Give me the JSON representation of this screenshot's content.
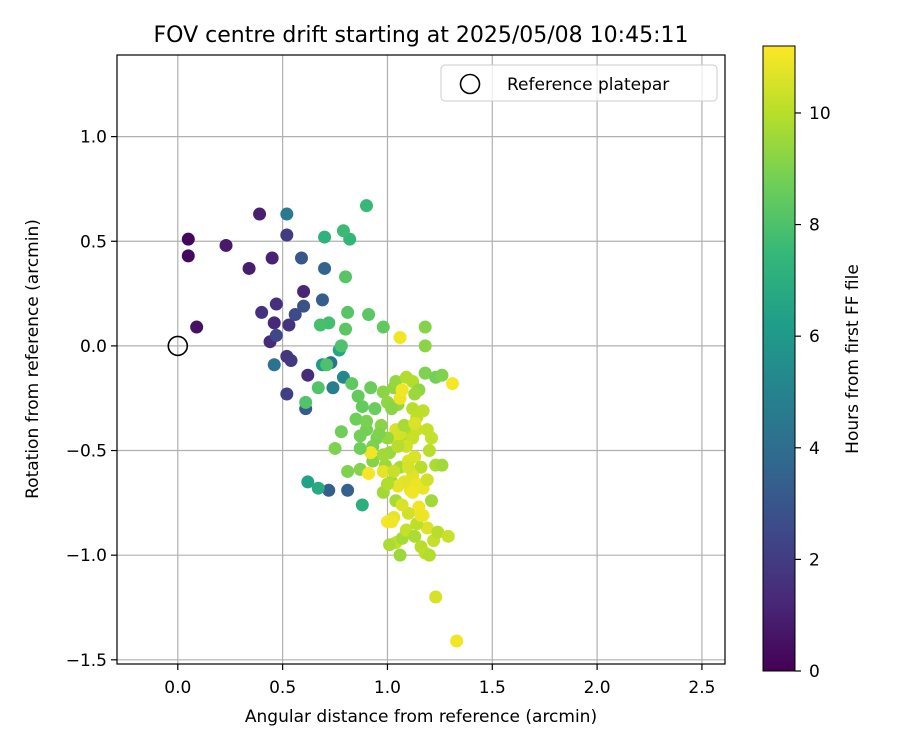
{
  "chart_data": {
    "type": "scatter",
    "title": "FOV centre drift starting at 2025/05/08 10:45:11",
    "xlabel": "Angular distance from reference (arcmin)",
    "ylabel": "Rotation from reference (arcmin)",
    "xlim": [
      -0.29,
      2.61
    ],
    "ylim": [
      -1.52,
      1.39
    ],
    "xticks": [
      0.0,
      0.5,
      1.0,
      1.5,
      2.0,
      2.5
    ],
    "xtick_labels": [
      "0.0",
      "0.5",
      "1.0",
      "1.5",
      "2.0",
      "2.5"
    ],
    "yticks": [
      -1.5,
      -1.0,
      -0.5,
      0.0,
      0.5,
      1.0
    ],
    "ytick_labels": [
      "−1.5",
      "−1.0",
      "−0.5",
      "0.0",
      "0.5",
      "1.0"
    ],
    "grid": true,
    "legend": {
      "placement": "top-right",
      "entries": [
        "Reference platepar"
      ]
    },
    "reference_point": {
      "x": 0.0,
      "y": 0.0
    },
    "colorbar": {
      "label": "Hours from first FF file",
      "colormap": "viridis",
      "min": 0,
      "max": 11.2,
      "ticks": [
        0,
        2,
        4,
        6,
        8,
        10
      ],
      "tick_labels": [
        "0",
        "2",
        "4",
        "6",
        "8",
        "10"
      ]
    },
    "points": [
      {
        "x": 0.05,
        "y": 0.51,
        "h": 0.2
      },
      {
        "x": 0.05,
        "y": 0.43,
        "h": 0.3
      },
      {
        "x": 0.09,
        "y": 0.09,
        "h": 0.5
      },
      {
        "x": 0.23,
        "y": 0.48,
        "h": 0.8
      },
      {
        "x": 0.34,
        "y": 0.37,
        "h": 0.9
      },
      {
        "x": 0.39,
        "y": 0.63,
        "h": 1.0
      },
      {
        "x": 0.45,
        "y": 0.42,
        "h": 1.1
      },
      {
        "x": 0.46,
        "y": 0.11,
        "h": 1.3
      },
      {
        "x": 0.44,
        "y": 0.02,
        "h": 1.4
      },
      {
        "x": 0.4,
        "y": 0.16,
        "h": 1.6
      },
      {
        "x": 0.47,
        "y": 0.2,
        "h": 1.5
      },
      {
        "x": 0.52,
        "y": 0.53,
        "h": 2.0
      },
      {
        "x": 0.53,
        "y": 0.1,
        "h": 1.7
      },
      {
        "x": 0.52,
        "y": -0.05,
        "h": 1.8
      },
      {
        "x": 0.54,
        "y": -0.07,
        "h": 1.9
      },
      {
        "x": 0.6,
        "y": 0.26,
        "h": 1.2
      },
      {
        "x": 0.62,
        "y": -0.14,
        "h": 1.4
      },
      {
        "x": 0.52,
        "y": -0.23,
        "h": 2.1
      },
      {
        "x": 0.47,
        "y": 0.05,
        "h": 2.4
      },
      {
        "x": 0.56,
        "y": 0.15,
        "h": 2.6
      },
      {
        "x": 0.6,
        "y": 0.19,
        "h": 2.8
      },
      {
        "x": 0.59,
        "y": 0.42,
        "h": 3.0
      },
      {
        "x": 0.61,
        "y": -0.3,
        "h": 3.2
      },
      {
        "x": 0.69,
        "y": 0.22,
        "h": 3.3
      },
      {
        "x": 0.7,
        "y": 0.37,
        "h": 3.6
      },
      {
        "x": 0.72,
        "y": -0.69,
        "h": 3.4
      },
      {
        "x": 0.81,
        "y": -0.69,
        "h": 3.5
      },
      {
        "x": 0.46,
        "y": -0.09,
        "h": 4.2
      },
      {
        "x": 0.52,
        "y": 0.63,
        "h": 4.6
      },
      {
        "x": 0.73,
        "y": -0.08,
        "h": 4.3
      },
      {
        "x": 0.74,
        "y": -0.2,
        "h": 4.8
      },
      {
        "x": 0.79,
        "y": -0.15,
        "h": 5.2
      },
      {
        "x": 0.69,
        "y": -0.09,
        "h": 6.0
      },
      {
        "x": 0.62,
        "y": -0.65,
        "h": 6.4
      },
      {
        "x": 0.67,
        "y": -0.68,
        "h": 6.8
      },
      {
        "x": 0.77,
        "y": -0.02,
        "h": 6.6
      },
      {
        "x": 0.88,
        "y": -0.76,
        "h": 7.0
      },
      {
        "x": 0.7,
        "y": 0.52,
        "h": 7.2
      },
      {
        "x": 0.82,
        "y": 0.51,
        "h": 7.4
      },
      {
        "x": 0.79,
        "y": 0.55,
        "h": 7.6
      },
      {
        "x": 0.9,
        "y": 0.67,
        "h": 7.5
      },
      {
        "x": 0.72,
        "y": 0.11,
        "h": 7.8
      },
      {
        "x": 0.68,
        "y": 0.1,
        "h": 7.9
      },
      {
        "x": 0.78,
        "y": 0.0,
        "h": 8.0
      },
      {
        "x": 0.71,
        "y": -0.09,
        "h": 8.0
      },
      {
        "x": 0.67,
        "y": -0.2,
        "h": 8.1
      },
      {
        "x": 0.61,
        "y": -0.27,
        "h": 8.1
      },
      {
        "x": 0.8,
        "y": 0.33,
        "h": 8.2
      },
      {
        "x": 0.81,
        "y": 0.16,
        "h": 8.2
      },
      {
        "x": 0.8,
        "y": 0.08,
        "h": 8.3
      },
      {
        "x": 0.91,
        "y": 0.15,
        "h": 8.3
      },
      {
        "x": 0.98,
        "y": 0.09,
        "h": 8.4
      },
      {
        "x": 0.83,
        "y": -0.18,
        "h": 8.4
      },
      {
        "x": 0.86,
        "y": -0.24,
        "h": 8.5
      },
      {
        "x": 0.88,
        "y": -0.29,
        "h": 8.5
      },
      {
        "x": 0.92,
        "y": -0.2,
        "h": 8.6
      },
      {
        "x": 0.94,
        "y": -0.3,
        "h": 8.6
      },
      {
        "x": 0.78,
        "y": -0.41,
        "h": 8.7
      },
      {
        "x": 0.85,
        "y": -0.35,
        "h": 8.7
      },
      {
        "x": 0.87,
        "y": -0.43,
        "h": 8.8
      },
      {
        "x": 0.9,
        "y": -0.4,
        "h": 8.8
      },
      {
        "x": 0.95,
        "y": -0.44,
        "h": 8.9
      },
      {
        "x": 0.93,
        "y": -0.48,
        "h": 8.9
      },
      {
        "x": 0.75,
        "y": -0.49,
        "h": 9.0
      },
      {
        "x": 0.81,
        "y": -0.6,
        "h": 9.0
      },
      {
        "x": 0.87,
        "y": -0.59,
        "h": 9.1
      },
      {
        "x": 0.93,
        "y": -0.55,
        "h": 9.1
      },
      {
        "x": 0.97,
        "y": -0.38,
        "h": 9.2
      },
      {
        "x": 0.98,
        "y": -0.22,
        "h": 9.2
      },
      {
        "x": 1.0,
        "y": -0.27,
        "h": 9.3
      },
      {
        "x": 1.03,
        "y": -0.2,
        "h": 9.3
      },
      {
        "x": 1.05,
        "y": -0.28,
        "h": 9.4
      },
      {
        "x": 1.04,
        "y": -0.17,
        "h": 9.4
      },
      {
        "x": 1.01,
        "y": -0.51,
        "h": 9.5
      },
      {
        "x": 0.99,
        "y": -0.57,
        "h": 9.5
      },
      {
        "x": 0.98,
        "y": -0.7,
        "h": 9.6
      },
      {
        "x": 1.02,
        "y": -0.65,
        "h": 9.6
      },
      {
        "x": 1.04,
        "y": -0.74,
        "h": 9.7
      },
      {
        "x": 1.06,
        "y": -0.58,
        "h": 9.7
      },
      {
        "x": 1.08,
        "y": -0.46,
        "h": 9.8
      },
      {
        "x": 1.1,
        "y": -0.4,
        "h": 9.8
      },
      {
        "x": 1.09,
        "y": -0.15,
        "h": 9.9
      },
      {
        "x": 1.12,
        "y": -0.17,
        "h": 9.9
      },
      {
        "x": 1.15,
        "y": -0.21,
        "h": 9.3
      },
      {
        "x": 1.18,
        "y": -0.13,
        "h": 9.0
      },
      {
        "x": 1.23,
        "y": -0.15,
        "h": 8.8
      },
      {
        "x": 1.26,
        "y": -0.14,
        "h": 9.0
      },
      {
        "x": 1.18,
        "y": 0.09,
        "h": 9.1
      },
      {
        "x": 1.18,
        "y": 0.0,
        "h": 9.2
      },
      {
        "x": 1.12,
        "y": -0.3,
        "h": 10.0
      },
      {
        "x": 1.14,
        "y": -0.34,
        "h": 10.1
      },
      {
        "x": 1.17,
        "y": -0.31,
        "h": 10.1
      },
      {
        "x": 1.19,
        "y": -0.4,
        "h": 10.2
      },
      {
        "x": 1.21,
        "y": -0.44,
        "h": 10.2
      },
      {
        "x": 1.2,
        "y": -0.5,
        "h": 10.0
      },
      {
        "x": 1.23,
        "y": -0.57,
        "h": 9.8
      },
      {
        "x": 1.26,
        "y": -0.57,
        "h": 9.6
      },
      {
        "x": 1.14,
        "y": -0.4,
        "h": 10.3
      },
      {
        "x": 1.12,
        "y": -0.44,
        "h": 10.3
      },
      {
        "x": 1.09,
        "y": -0.48,
        "h": 10.4
      },
      {
        "x": 1.06,
        "y": -0.42,
        "h": 10.4
      },
      {
        "x": 1.04,
        "y": -0.4,
        "h": 10.5
      },
      {
        "x": 1.03,
        "y": -0.44,
        "h": 10.5
      },
      {
        "x": 1.1,
        "y": -0.55,
        "h": 10.6
      },
      {
        "x": 1.13,
        "y": -0.53,
        "h": 10.6
      },
      {
        "x": 1.16,
        "y": -0.58,
        "h": 10.0
      },
      {
        "x": 1.12,
        "y": -0.62,
        "h": 10.7
      },
      {
        "x": 1.08,
        "y": -0.65,
        "h": 10.7
      },
      {
        "x": 1.05,
        "y": -0.67,
        "h": 10.8
      },
      {
        "x": 1.11,
        "y": -0.69,
        "h": 10.8
      },
      {
        "x": 1.14,
        "y": -0.66,
        "h": 10.9
      },
      {
        "x": 1.17,
        "y": -0.68,
        "h": 10.9
      },
      {
        "x": 1.15,
        "y": -0.77,
        "h": 11.0
      },
      {
        "x": 1.17,
        "y": -0.81,
        "h": 11.0
      },
      {
        "x": 1.19,
        "y": -0.87,
        "h": 10.6
      },
      {
        "x": 1.22,
        "y": -0.93,
        "h": 10.2
      },
      {
        "x": 1.24,
        "y": -0.89,
        "h": 10.0
      },
      {
        "x": 1.29,
        "y": -0.91,
        "h": 10.3
      },
      {
        "x": 1.14,
        "y": -0.85,
        "h": 10.1
      },
      {
        "x": 1.1,
        "y": -0.8,
        "h": 10.4
      },
      {
        "x": 1.07,
        "y": -0.76,
        "h": 10.6
      },
      {
        "x": 1.03,
        "y": -0.82,
        "h": 10.8
      },
      {
        "x": 1.0,
        "y": -0.84,
        "h": 11.1
      },
      {
        "x": 1.02,
        "y": -0.84,
        "h": 11.0
      },
      {
        "x": 1.04,
        "y": -0.94,
        "h": 10.2
      },
      {
        "x": 1.01,
        "y": -0.95,
        "h": 9.8
      },
      {
        "x": 1.06,
        "y": -1.0,
        "h": 9.5
      },
      {
        "x": 1.07,
        "y": -0.92,
        "h": 9.7
      },
      {
        "x": 1.16,
        "y": -0.96,
        "h": 10.0
      },
      {
        "x": 1.18,
        "y": -0.99,
        "h": 10.1
      },
      {
        "x": 1.2,
        "y": -1.0,
        "h": 9.9
      },
      {
        "x": 1.23,
        "y": -1.2,
        "h": 10.5
      },
      {
        "x": 1.33,
        "y": -1.41,
        "h": 11.0
      },
      {
        "x": 1.31,
        "y": -0.18,
        "h": 11.1
      },
      {
        "x": 1.06,
        "y": 0.04,
        "h": 11.0
      },
      {
        "x": 1.06,
        "y": -0.25,
        "h": 10.9
      },
      {
        "x": 1.07,
        "y": -0.21,
        "h": 11.0
      },
      {
        "x": 1.1,
        "y": -0.58,
        "h": 10.5
      },
      {
        "x": 1.12,
        "y": -0.7,
        "h": 11.0
      },
      {
        "x": 1.16,
        "y": -0.81,
        "h": 10.9
      },
      {
        "x": 0.92,
        "y": -0.51,
        "h": 11.0
      },
      {
        "x": 0.91,
        "y": -0.61,
        "h": 11.1
      },
      {
        "x": 0.98,
        "y": -0.6,
        "h": 10.8
      },
      {
        "x": 1.03,
        "y": -0.6,
        "h": 10.3
      },
      {
        "x": 1.0,
        "y": -0.66,
        "h": 9.9
      },
      {
        "x": 1.05,
        "y": -0.48,
        "h": 10.0
      },
      {
        "x": 1.0,
        "y": -0.44,
        "h": 9.4
      },
      {
        "x": 0.98,
        "y": -0.52,
        "h": 9.6
      },
      {
        "x": 1.13,
        "y": -0.23,
        "h": 9.5
      },
      {
        "x": 1.02,
        "y": -0.3,
        "h": 9.2
      },
      {
        "x": 0.96,
        "y": -0.42,
        "h": 9.0
      },
      {
        "x": 0.9,
        "y": -0.36,
        "h": 8.9
      },
      {
        "x": 0.87,
        "y": -0.49,
        "h": 8.7
      },
      {
        "x": 1.08,
        "y": -0.38,
        "h": 9.7
      },
      {
        "x": 1.13,
        "y": -0.37,
        "h": 10.6
      },
      {
        "x": 1.19,
        "y": -0.64,
        "h": 10.4
      },
      {
        "x": 1.21,
        "y": -0.74,
        "h": 9.6
      },
      {
        "x": 1.09,
        "y": -0.88,
        "h": 10.2
      },
      {
        "x": 1.13,
        "y": -0.91,
        "h": 9.8
      }
    ]
  }
}
